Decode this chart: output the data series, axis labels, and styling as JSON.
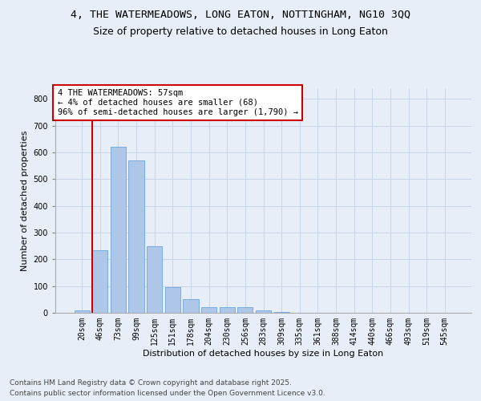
{
  "title_line1": "4, THE WATERMEADOWS, LONG EATON, NOTTINGHAM, NG10 3QQ",
  "title_line2": "Size of property relative to detached houses in Long Eaton",
  "xlabel": "Distribution of detached houses by size in Long Eaton",
  "ylabel": "Number of detached properties",
  "categories": [
    "20sqm",
    "46sqm",
    "73sqm",
    "99sqm",
    "125sqm",
    "151sqm",
    "178sqm",
    "204sqm",
    "230sqm",
    "256sqm",
    "283sqm",
    "309sqm",
    "335sqm",
    "361sqm",
    "388sqm",
    "414sqm",
    "440sqm",
    "466sqm",
    "493sqm",
    "519sqm",
    "545sqm"
  ],
  "values": [
    10,
    233,
    620,
    570,
    250,
    97,
    50,
    22,
    21,
    22,
    8,
    4,
    0,
    0,
    0,
    0,
    0,
    0,
    0,
    0,
    0
  ],
  "bar_color": "#aec6e8",
  "bar_edge_color": "#5b9bd5",
  "grid_color": "#c8d4e8",
  "background_color": "#e8eef8",
  "red_line_color": "#cc0000",
  "red_line_index": 1,
  "annotation_title": "4 THE WATERMEADOWS: 57sqm",
  "annotation_line1": "← 4% of detached houses are smaller (68)",
  "annotation_line2": "96% of semi-detached houses are larger (1,790) →",
  "annotation_box_color": "#ffffff",
  "annotation_border_color": "#cc0000",
  "ylim": [
    0,
    840
  ],
  "yticks": [
    0,
    100,
    200,
    300,
    400,
    500,
    600,
    700,
    800
  ],
  "footer_line1": "Contains HM Land Registry data © Crown copyright and database right 2025.",
  "footer_line2": "Contains public sector information licensed under the Open Government Licence v3.0.",
  "title_fontsize": 9.5,
  "subtitle_fontsize": 9,
  "axis_label_fontsize": 8,
  "tick_fontsize": 7,
  "annotation_fontsize": 7.5,
  "footer_fontsize": 6.5
}
